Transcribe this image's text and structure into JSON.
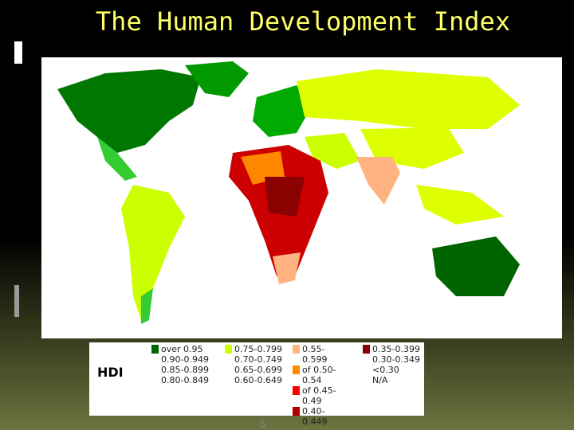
{
  "title": "The Human Development Index",
  "legend": {
    "label": "HDI",
    "columns": [
      [
        {
          "label": "over 0.95",
          "color": "#006400"
        },
        {
          "label": "0.90-0.949",
          "color": "#ffffff"
        },
        {
          "label": "0.85-0.899",
          "color": "#ffffff"
        },
        {
          "label": "0.80-0.849",
          "color": "#ffffff"
        }
      ],
      [
        {
          "label": "0.75-0.799",
          "color": "#ccff00"
        },
        {
          "label": "0.70-0.749",
          "color": "#ffffff"
        },
        {
          "label": "0.65-0.699",
          "color": "#ffffff"
        },
        {
          "label": "0.60-0.649",
          "color": "#ffffff"
        }
      ],
      [
        {
          "label": "0.55-0.599",
          "color": "#ffb380"
        },
        {
          "label": "of 0.50-0.54",
          "color": "#ff8c00"
        },
        {
          "label": "of 0.45-0.49",
          "color": "#ff0000"
        },
        {
          "label": "0.40-0.449",
          "color": "#b00000"
        }
      ],
      [
        {
          "label": "0.35-0.399",
          "color": "#8b0000"
        },
        {
          "label": "0.30-0.349",
          "color": "#ffffff"
        },
        {
          "label": "<0.30",
          "color": "#ffffff"
        },
        {
          "label": "N/A",
          "color": "#ffffff"
        }
      ]
    ]
  },
  "page_number": "5"
}
